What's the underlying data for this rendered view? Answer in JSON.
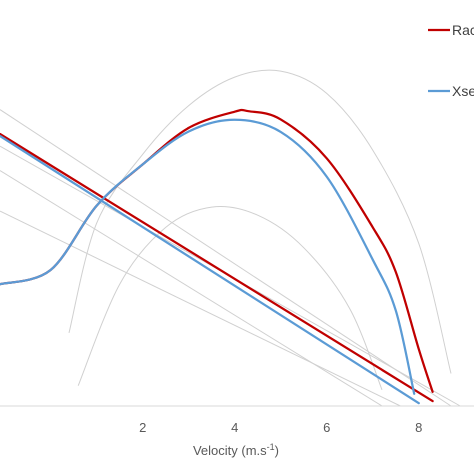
{
  "chart_data": {
    "type": "line",
    "title": "",
    "xlabel": "Velocity (m.s",
    "xlabel_sup": "-1",
    "xlabel_close": ")",
    "ylabel": "",
    "xlim": [
      -1.1,
      9.2
    ],
    "ylim": [
      0,
      1.0
    ],
    "x_ticks": [
      2,
      4,
      6,
      8
    ],
    "x_tick_labels": [
      "2",
      "4",
      "6",
      "8"
    ],
    "grid": false,
    "legend_position": "top-right",
    "series": [
      {
        "name": "Rac",
        "color": "#c00000",
        "curves": [
          {
            "kind": "force",
            "points": [
              [
                -1.1,
                0.67
              ],
              [
                8.3,
                0.012
              ]
            ]
          },
          {
            "kind": "power",
            "points": [
              [
                -1.1,
                0.3
              ],
              [
                0,
                0.335
              ],
              [
                1,
                0.493
              ],
              [
                2,
                0.595
              ],
              [
                3,
                0.685
              ],
              [
                4,
                0.725
              ],
              [
                4.3,
                0.726
              ],
              [
                5,
                0.706
              ],
              [
                6,
                0.61
              ],
              [
                7,
                0.44
              ],
              [
                7.5,
                0.33
              ],
              [
                8,
                0.14
              ],
              [
                8.3,
                0.035
              ]
            ]
          }
        ]
      },
      {
        "name": "Xsec",
        "color": "#5b9bd5",
        "curves": [
          {
            "kind": "force",
            "points": [
              [
                -1.1,
                0.665
              ],
              [
                8.0,
                0.007
              ]
            ]
          },
          {
            "kind": "power",
            "points": [
              [
                -1.1,
                0.3
              ],
              [
                0,
                0.335
              ],
              [
                1,
                0.493
              ],
              [
                2,
                0.595
              ],
              [
                3,
                0.676
              ],
              [
                4,
                0.705
              ],
              [
                5,
                0.675
              ],
              [
                6,
                0.565
              ],
              [
                7,
                0.36
              ],
              [
                7.5,
                0.235
              ],
              [
                7.9,
                0.03
              ]
            ]
          }
        ]
      }
    ],
    "background_curves": [
      {
        "color": "#d0d0d0",
        "points": [
          [
            -1.1,
            0.73
          ],
          [
            8.7,
            0.0
          ]
        ]
      },
      {
        "color": "#d0d0d0",
        "points": [
          [
            -1.1,
            0.64
          ],
          [
            8.9,
            0.0
          ]
        ]
      },
      {
        "color": "#d0d0d0",
        "points": [
          [
            -1.1,
            0.58
          ],
          [
            7.2,
            0.0
          ]
        ]
      },
      {
        "color": "#d0d0d0",
        "points": [
          [
            -1.1,
            0.48
          ],
          [
            7.6,
            0.0
          ]
        ]
      },
      {
        "color": "#d0d0d0",
        "points": [
          [
            0.4,
            0.18
          ],
          [
            1,
            0.45
          ],
          [
            2,
            0.62
          ],
          [
            3,
            0.74
          ],
          [
            4,
            0.81
          ],
          [
            5,
            0.825
          ],
          [
            6,
            0.77
          ],
          [
            7,
            0.63
          ],
          [
            8,
            0.4
          ],
          [
            8.7,
            0.08
          ]
        ]
      },
      {
        "color": "#d0d0d0",
        "points": [
          [
            0.6,
            0.05
          ],
          [
            1.5,
            0.3
          ],
          [
            2.5,
            0.44
          ],
          [
            3.5,
            0.49
          ],
          [
            4.5,
            0.47
          ],
          [
            5.5,
            0.39
          ],
          [
            6.5,
            0.24
          ],
          [
            7.2,
            0.04
          ]
        ]
      }
    ]
  }
}
